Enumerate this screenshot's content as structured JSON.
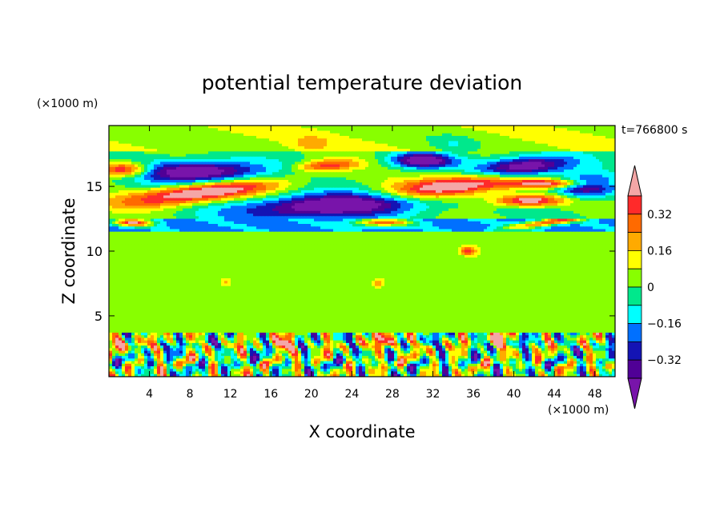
{
  "chart_data": {
    "type": "heatmap",
    "title": "potential temperature deviation",
    "xlabel": "X coordinate",
    "ylabel": "Z coordinate",
    "x_unit": "(×1000 m)",
    "y_unit": "(×1000 m)",
    "time_label": "t=766800 s",
    "xlim": [
      0,
      50
    ],
    "ylim": [
      0.3,
      19.7
    ],
    "x_ticks": [
      "4",
      "8",
      "12",
      "16",
      "20",
      "24",
      "28",
      "32",
      "36",
      "40",
      "44",
      "48"
    ],
    "y_ticks": [
      "5",
      "10",
      "15"
    ],
    "colorbar": {
      "levels": [
        -0.4,
        -0.32,
        -0.24,
        -0.16,
        -0.08,
        0,
        0.08,
        0.16,
        0.24,
        0.32,
        0.4
      ],
      "tick_labels": [
        "0.32",
        "0.16",
        "0",
        "−0.16",
        "−0.32"
      ],
      "colors_high_to_low": [
        "#f4a6a6",
        "#ff2a2a",
        "#ff6a00",
        "#ffaa00",
        "#ffff00",
        "#88ff00",
        "#00e88c",
        "#00ffff",
        "#0070ff",
        "#1414b4",
        "#500096",
        "#7814aa"
      ]
    },
    "bands": [
      {
        "z_range": [
          0.3,
          3.6
        ],
        "pattern": "strong-alternating-convective-cells"
      },
      {
        "z_range": [
          3.6,
          11.5
        ],
        "pattern": "near-zero-green"
      },
      {
        "z_range": [
          11.5,
          12.5
        ],
        "pattern": "cool-layer-blue-cyan"
      },
      {
        "z_range": [
          12.5,
          17.5
        ],
        "pattern": "elongated-tilted-warm-and-cool-layers"
      },
      {
        "z_range": [
          17.5,
          19.7
        ],
        "pattern": "weak-warm-green"
      }
    ]
  }
}
